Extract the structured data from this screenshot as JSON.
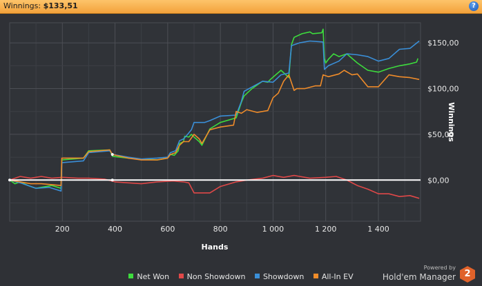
{
  "header": {
    "title_label": "Winnings:",
    "title_value": "$133,51",
    "help_glyph": "?"
  },
  "brand": {
    "powered": "Powered by",
    "name": "Hold'em Manager",
    "logo_text": "2"
  },
  "chart_data": {
    "type": "line",
    "xlabel": "Hands",
    "ylabel": "Winnings",
    "xlim": [
      0,
      1560
    ],
    "ylim": [
      -45,
      172
    ],
    "x_ticks": [
      200,
      400,
      600,
      800,
      1000,
      1200,
      1400
    ],
    "x_tick_labels": [
      "200",
      "400",
      "600",
      "800",
      "1 000",
      "1 200",
      "1 400"
    ],
    "y_ticks": [
      0,
      50,
      100,
      150
    ],
    "y_tick_labels": [
      "$0,00",
      "$50,00",
      "$100,00",
      "$150,00"
    ],
    "grid": true,
    "legend_position": "bottom",
    "series": [
      {
        "name": "Net Won",
        "color": "#3ddc3d",
        "points": [
          [
            0,
            0
          ],
          [
            20,
            -4
          ],
          [
            40,
            -2
          ],
          [
            70,
            -6
          ],
          [
            100,
            -9
          ],
          [
            160,
            -6
          ],
          [
            195,
            -9
          ],
          [
            198,
            22
          ],
          [
            280,
            24
          ],
          [
            300,
            32
          ],
          [
            380,
            33
          ],
          [
            390,
            26
          ],
          [
            450,
            24
          ],
          [
            500,
            23
          ],
          [
            560,
            22
          ],
          [
            600,
            24
          ],
          [
            610,
            28
          ],
          [
            625,
            27
          ],
          [
            640,
            32
          ],
          [
            645,
            40
          ],
          [
            660,
            42
          ],
          [
            665,
            48
          ],
          [
            680,
            47
          ],
          [
            690,
            50
          ],
          [
            700,
            47
          ],
          [
            720,
            42
          ],
          [
            730,
            38
          ],
          [
            760,
            56
          ],
          [
            800,
            63
          ],
          [
            860,
            68
          ],
          [
            880,
            85
          ],
          [
            890,
            92
          ],
          [
            920,
            100
          ],
          [
            960,
            108
          ],
          [
            980,
            107
          ],
          [
            990,
            110
          ],
          [
            1010,
            115
          ],
          [
            1030,
            120
          ],
          [
            1060,
            112
          ],
          [
            1070,
            148
          ],
          [
            1080,
            156
          ],
          [
            1110,
            160
          ],
          [
            1140,
            162
          ],
          [
            1150,
            160
          ],
          [
            1185,
            161
          ],
          [
            1190,
            165
          ],
          [
            1195,
            133
          ],
          [
            1200,
            128
          ],
          [
            1210,
            132
          ],
          [
            1230,
            138
          ],
          [
            1250,
            135
          ],
          [
            1280,
            138
          ],
          [
            1320,
            128
          ],
          [
            1360,
            120
          ],
          [
            1400,
            118
          ],
          [
            1440,
            122
          ],
          [
            1480,
            125
          ],
          [
            1520,
            127
          ],
          [
            1545,
            129
          ],
          [
            1550,
            133
          ]
        ]
      },
      {
        "name": "Non Showdown",
        "color": "#e04848",
        "points": [
          [
            0,
            0
          ],
          [
            20,
            2
          ],
          [
            40,
            4
          ],
          [
            60,
            3
          ],
          [
            80,
            2
          ],
          [
            100,
            3
          ],
          [
            120,
            4
          ],
          [
            160,
            2
          ],
          [
            200,
            3
          ],
          [
            260,
            2
          ],
          [
            300,
            2
          ],
          [
            360,
            1
          ],
          [
            400,
            -2
          ],
          [
            450,
            -3
          ],
          [
            500,
            -4
          ],
          [
            560,
            -2
          ],
          [
            620,
            -1
          ],
          [
            660,
            -2
          ],
          [
            680,
            -3
          ],
          [
            700,
            -14
          ],
          [
            760,
            -14
          ],
          [
            800,
            -7
          ],
          [
            860,
            -2
          ],
          [
            900,
            0
          ],
          [
            960,
            2
          ],
          [
            1000,
            5
          ],
          [
            1040,
            3
          ],
          [
            1080,
            5
          ],
          [
            1140,
            2
          ],
          [
            1200,
            3
          ],
          [
            1240,
            4
          ],
          [
            1280,
            0
          ],
          [
            1320,
            -6
          ],
          [
            1360,
            -10
          ],
          [
            1400,
            -15
          ],
          [
            1440,
            -15
          ],
          [
            1480,
            -18
          ],
          [
            1520,
            -17
          ],
          [
            1555,
            -20
          ]
        ]
      },
      {
        "name": "Showdown",
        "color": "#3a8fd8",
        "points": [
          [
            0,
            0
          ],
          [
            40,
            -3
          ],
          [
            70,
            -6
          ],
          [
            100,
            -9
          ],
          [
            150,
            -8
          ],
          [
            195,
            -12
          ],
          [
            198,
            19
          ],
          [
            280,
            21
          ],
          [
            300,
            30
          ],
          [
            380,
            32
          ],
          [
            390,
            28
          ],
          [
            450,
            25
          ],
          [
            500,
            23
          ],
          [
            560,
            24
          ],
          [
            600,
            25
          ],
          [
            610,
            30
          ],
          [
            630,
            32
          ],
          [
            645,
            43
          ],
          [
            660,
            45
          ],
          [
            670,
            48
          ],
          [
            690,
            55
          ],
          [
            700,
            63
          ],
          [
            740,
            63
          ],
          [
            760,
            65
          ],
          [
            800,
            70
          ],
          [
            860,
            71
          ],
          [
            880,
            86
          ],
          [
            890,
            97
          ],
          [
            960,
            108
          ],
          [
            1000,
            107
          ],
          [
            1030,
            115
          ],
          [
            1060,
            117
          ],
          [
            1070,
            147
          ],
          [
            1100,
            150
          ],
          [
            1140,
            152
          ],
          [
            1190,
            151
          ],
          [
            1195,
            121
          ],
          [
            1210,
            125
          ],
          [
            1250,
            130
          ],
          [
            1280,
            138
          ],
          [
            1320,
            137
          ],
          [
            1360,
            135
          ],
          [
            1400,
            130
          ],
          [
            1440,
            133
          ],
          [
            1480,
            143
          ],
          [
            1520,
            144
          ],
          [
            1555,
            152
          ]
        ]
      },
      {
        "name": "All-In EV",
        "color": "#f08c2a",
        "points": [
          [
            0,
            0
          ],
          [
            40,
            -2
          ],
          [
            80,
            -4
          ],
          [
            120,
            -4
          ],
          [
            160,
            -5
          ],
          [
            195,
            -6
          ],
          [
            198,
            24
          ],
          [
            280,
            24
          ],
          [
            300,
            31
          ],
          [
            380,
            33
          ],
          [
            390,
            28
          ],
          [
            450,
            24
          ],
          [
            500,
            22
          ],
          [
            560,
            22
          ],
          [
            600,
            24
          ],
          [
            610,
            28
          ],
          [
            630,
            30
          ],
          [
            645,
            38
          ],
          [
            660,
            42
          ],
          [
            680,
            42
          ],
          [
            700,
            50
          ],
          [
            720,
            45
          ],
          [
            730,
            40
          ],
          [
            760,
            55
          ],
          [
            800,
            58
          ],
          [
            850,
            60
          ],
          [
            860,
            75
          ],
          [
            880,
            73
          ],
          [
            900,
            77
          ],
          [
            940,
            74
          ],
          [
            980,
            76
          ],
          [
            1000,
            90
          ],
          [
            1020,
            95
          ],
          [
            1040,
            108
          ],
          [
            1060,
            115
          ],
          [
            1080,
            98
          ],
          [
            1090,
            100
          ],
          [
            1120,
            100
          ],
          [
            1160,
            103
          ],
          [
            1180,
            103
          ],
          [
            1190,
            115
          ],
          [
            1210,
            113
          ],
          [
            1250,
            116
          ],
          [
            1270,
            120
          ],
          [
            1300,
            115
          ],
          [
            1320,
            116
          ],
          [
            1360,
            102
          ],
          [
            1400,
            102
          ],
          [
            1440,
            115
          ],
          [
            1480,
            113
          ],
          [
            1520,
            112
          ],
          [
            1555,
            110
          ]
        ]
      }
    ]
  }
}
